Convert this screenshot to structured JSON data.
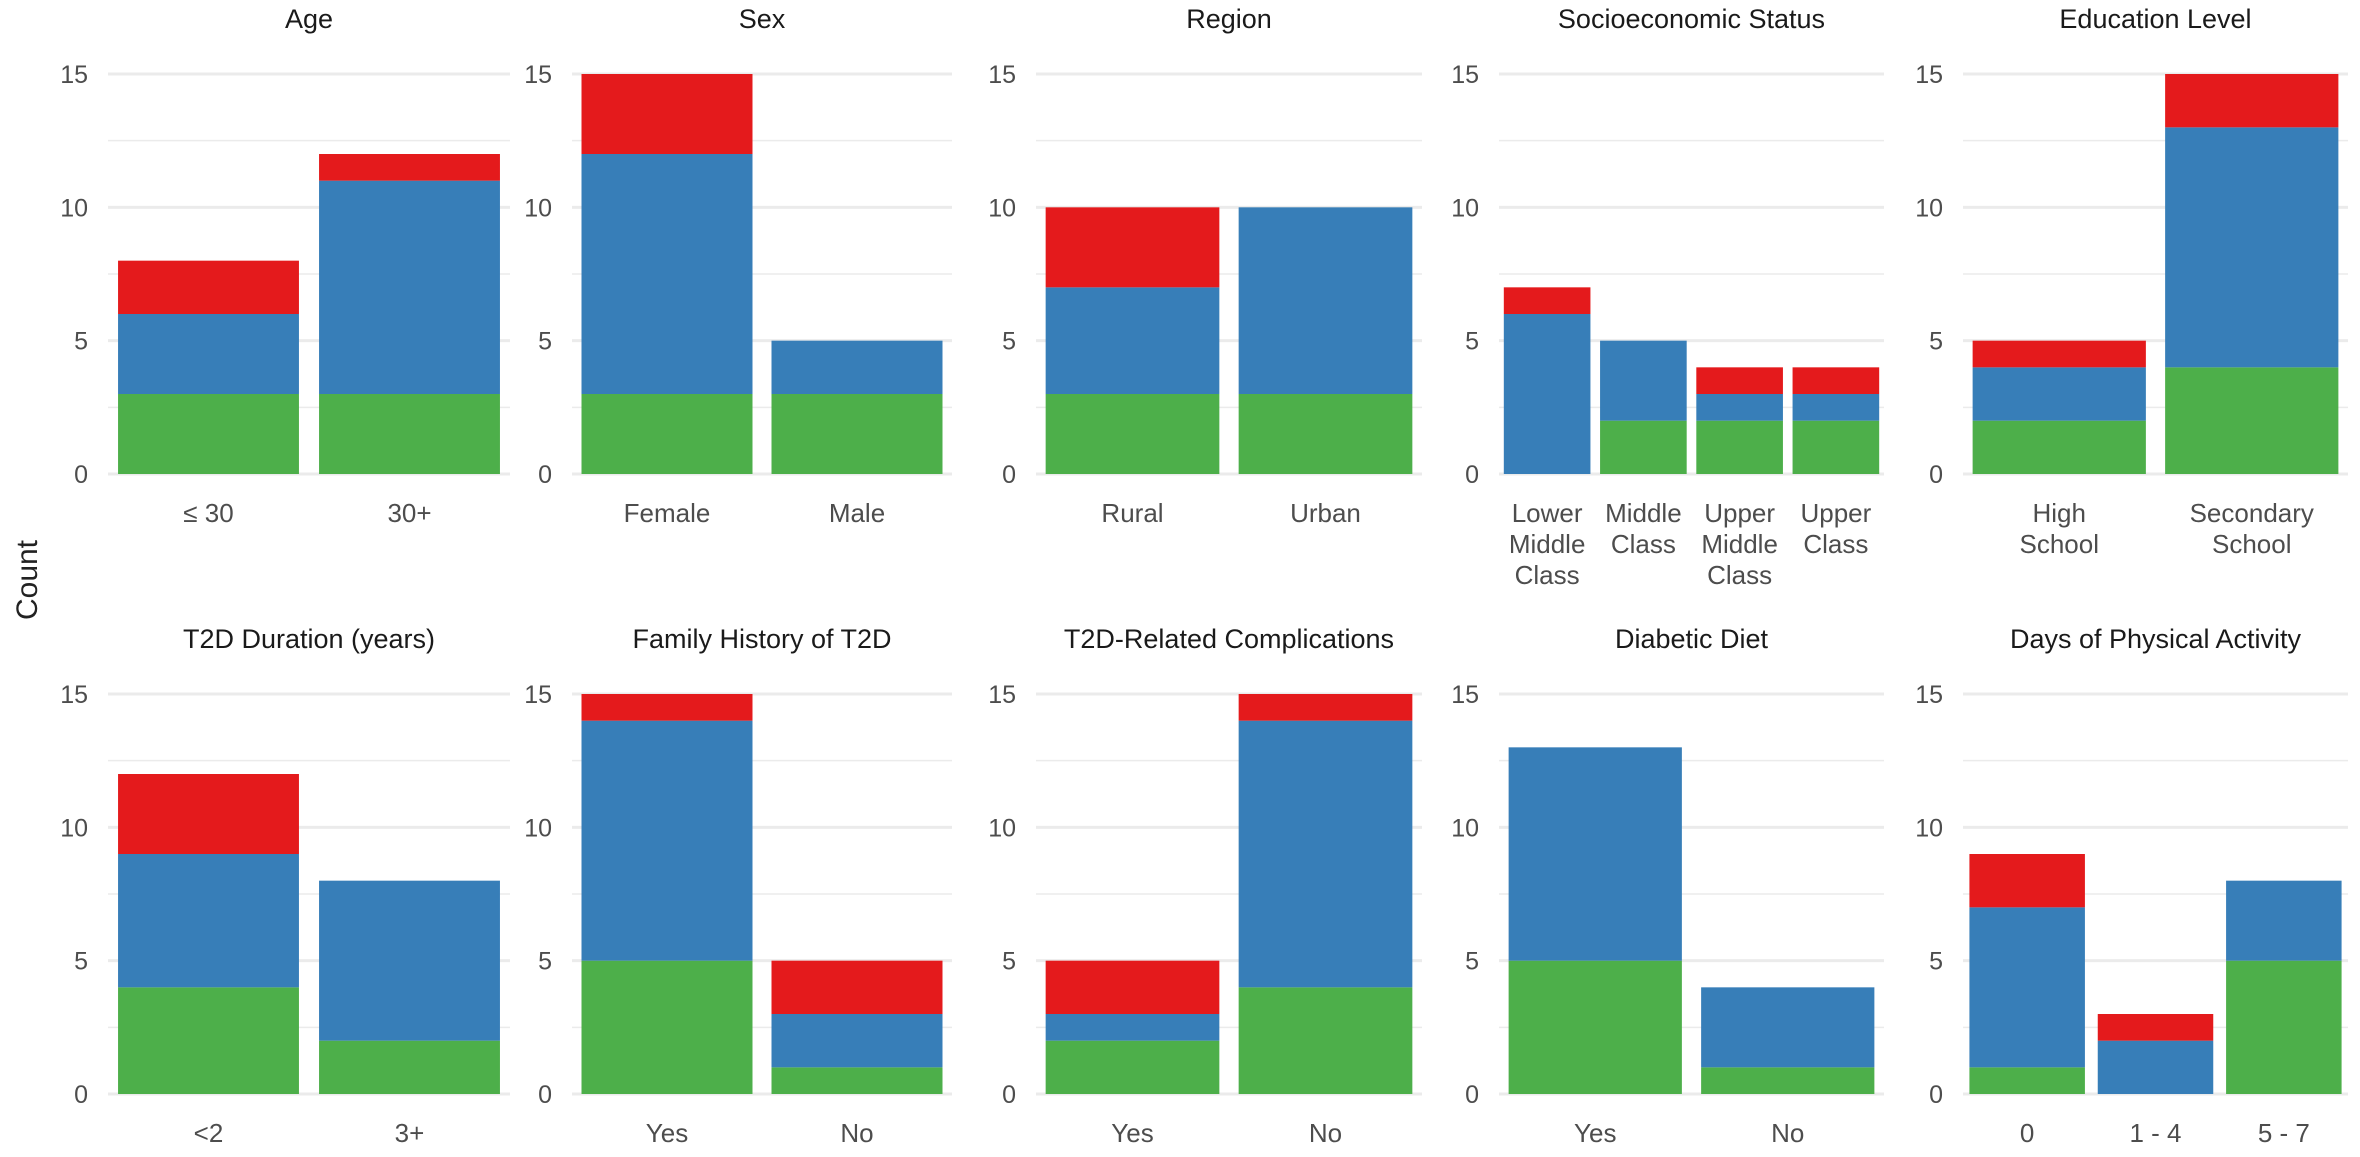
{
  "ylabel": "Count",
  "colors": {
    "green": "#4daf4a",
    "blue": "#377eb8",
    "red": "#e41a1c",
    "grid": "#ebebeb",
    "text": "#4d4d4d",
    "title": "#1a1a1a"
  },
  "chart_data": [
    {
      "type": "bar",
      "stacked": true,
      "title": "Age",
      "ylim": [
        0,
        15
      ],
      "yticks": [
        0,
        5,
        10,
        15
      ],
      "categories": [
        "≤ 30",
        "30+"
      ],
      "series": [
        {
          "color": "green",
          "values": [
            3,
            3
          ]
        },
        {
          "color": "blue",
          "values": [
            3,
            8
          ]
        },
        {
          "color": "red",
          "values": [
            2,
            1
          ]
        }
      ]
    },
    {
      "type": "bar",
      "stacked": true,
      "title": "Sex",
      "ylim": [
        0,
        15
      ],
      "yticks": [
        0,
        5,
        10,
        15
      ],
      "categories": [
        "Female",
        "Male"
      ],
      "series": [
        {
          "color": "green",
          "values": [
            3,
            3
          ]
        },
        {
          "color": "blue",
          "values": [
            9,
            2
          ]
        },
        {
          "color": "red",
          "values": [
            3,
            0
          ]
        }
      ]
    },
    {
      "type": "bar",
      "stacked": true,
      "title": "Region",
      "ylim": [
        0,
        15
      ],
      "yticks": [
        0,
        5,
        10,
        15
      ],
      "categories": [
        "Rural",
        "Urban"
      ],
      "series": [
        {
          "color": "green",
          "values": [
            3,
            3
          ]
        },
        {
          "color": "blue",
          "values": [
            4,
            7
          ]
        },
        {
          "color": "red",
          "values": [
            3,
            0
          ]
        }
      ]
    },
    {
      "type": "bar",
      "stacked": true,
      "title": "Socioeconomic Status",
      "ylim": [
        0,
        15
      ],
      "yticks": [
        0,
        5,
        10,
        15
      ],
      "categories": [
        "Lower\nMiddle\nClass",
        "Middle\nClass",
        "Upper\nMiddle\nClass",
        "Upper\nClass"
      ],
      "series": [
        {
          "color": "green",
          "values": [
            0,
            2,
            2,
            2
          ]
        },
        {
          "color": "blue",
          "values": [
            6,
            3,
            1,
            1
          ]
        },
        {
          "color": "red",
          "values": [
            1,
            0,
            1,
            1
          ]
        }
      ]
    },
    {
      "type": "bar",
      "stacked": true,
      "title": "Education Level",
      "ylim": [
        0,
        15
      ],
      "yticks": [
        0,
        5,
        10,
        15
      ],
      "categories": [
        "High\nSchool",
        "Secondary\nSchool"
      ],
      "series": [
        {
          "color": "green",
          "values": [
            2,
            4
          ]
        },
        {
          "color": "blue",
          "values": [
            2,
            9
          ]
        },
        {
          "color": "red",
          "values": [
            1,
            2
          ]
        }
      ]
    },
    {
      "type": "bar",
      "stacked": true,
      "title": "T2D Duration (years)",
      "ylim": [
        0,
        15
      ],
      "yticks": [
        0,
        5,
        10,
        15
      ],
      "categories": [
        "<2",
        "3+"
      ],
      "series": [
        {
          "color": "green",
          "values": [
            4,
            2
          ]
        },
        {
          "color": "blue",
          "values": [
            5,
            6
          ]
        },
        {
          "color": "red",
          "values": [
            3,
            0
          ]
        }
      ]
    },
    {
      "type": "bar",
      "stacked": true,
      "title": "Family History of T2D",
      "ylim": [
        0,
        15
      ],
      "yticks": [
        0,
        5,
        10,
        15
      ],
      "categories": [
        "Yes",
        "No"
      ],
      "series": [
        {
          "color": "green",
          "values": [
            5,
            1
          ]
        },
        {
          "color": "blue",
          "values": [
            9,
            2
          ]
        },
        {
          "color": "red",
          "values": [
            1,
            2
          ]
        }
      ]
    },
    {
      "type": "bar",
      "stacked": true,
      "title": "T2D-Related Complications",
      "ylim": [
        0,
        15
      ],
      "yticks": [
        0,
        5,
        10,
        15
      ],
      "categories": [
        "Yes",
        "No"
      ],
      "series": [
        {
          "color": "green",
          "values": [
            2,
            4
          ]
        },
        {
          "color": "blue",
          "values": [
            1,
            10
          ]
        },
        {
          "color": "red",
          "values": [
            2,
            1
          ]
        }
      ]
    },
    {
      "type": "bar",
      "stacked": true,
      "title": "Diabetic Diet",
      "ylim": [
        0,
        15
      ],
      "yticks": [
        0,
        5,
        10,
        15
      ],
      "categories": [
        "Yes",
        "No"
      ],
      "series": [
        {
          "color": "green",
          "values": [
            5,
            1
          ]
        },
        {
          "color": "blue",
          "values": [
            8,
            3
          ]
        },
        {
          "color": "red",
          "values": [
            0,
            0
          ]
        }
      ]
    },
    {
      "type": "bar",
      "stacked": true,
      "title": "Days of Physical Activity",
      "ylim": [
        0,
        15
      ],
      "yticks": [
        0,
        5,
        10,
        15
      ],
      "categories": [
        "0",
        "1 - 4",
        "5 - 7"
      ],
      "series": [
        {
          "color": "green",
          "values": [
            1,
            0,
            5
          ]
        },
        {
          "color": "blue",
          "values": [
            6,
            2,
            3
          ]
        },
        {
          "color": "red",
          "values": [
            2,
            1,
            0
          ]
        }
      ]
    }
  ]
}
